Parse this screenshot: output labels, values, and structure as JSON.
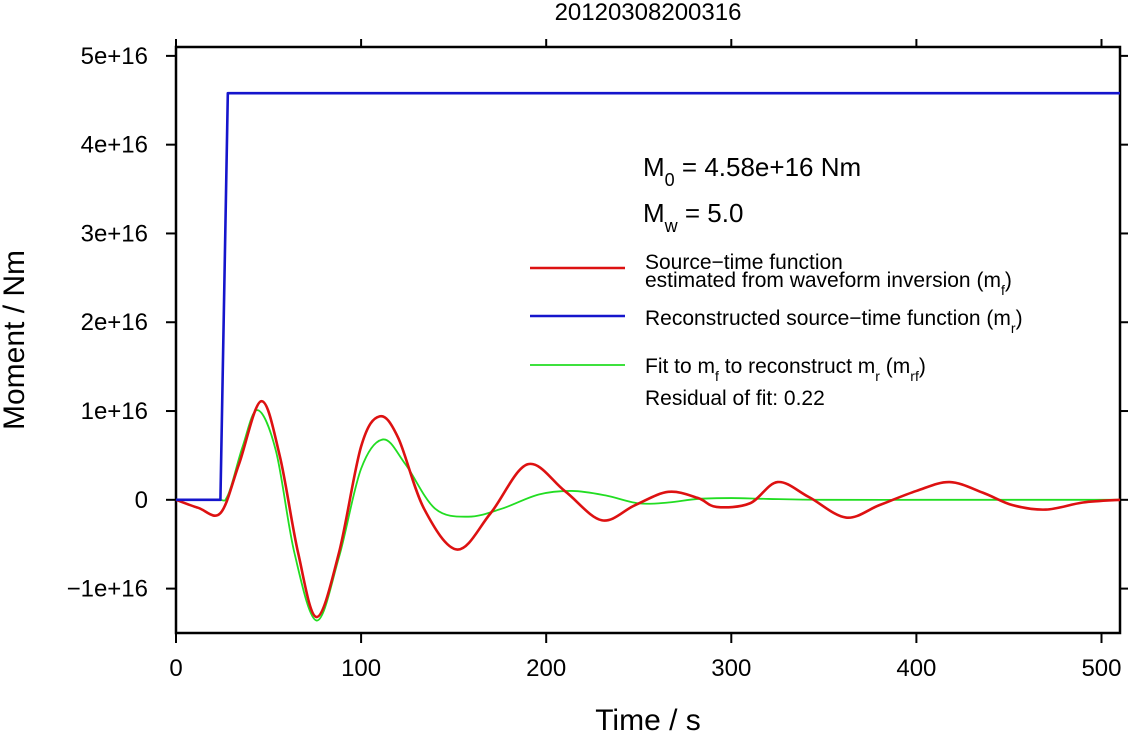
{
  "chart_data": {
    "type": "line",
    "title": "20120308200316",
    "xlabel": "Time / s",
    "ylabel": "Moment / Nm",
    "xlim": [
      0,
      510
    ],
    "ylim": [
      -1.5e+16,
      5.1e+16
    ],
    "xticks": [
      0,
      100,
      200,
      300,
      400,
      500
    ],
    "xtick_labels": [
      "0",
      "100",
      "200",
      "300",
      "400",
      "500"
    ],
    "yticks": [
      -1e+16,
      0,
      1e+16,
      2e+16,
      3e+16,
      4e+16,
      5e+16
    ],
    "ytick_labels": [
      "−1e+16",
      "0",
      "1e+16",
      "2e+16",
      "3e+16",
      "4e+16",
      "5e+16"
    ],
    "grid": false,
    "legend_position": "right",
    "annotations": {
      "m0_prefix": "M",
      "m0_sub": "0",
      "m0_rest": " = 4.58e+16 Nm",
      "mw_prefix": "M",
      "mw_sub": "w",
      "mw_rest": " = 5.0",
      "residual": "Residual of fit: 0.22"
    },
    "series": [
      {
        "key": "mf",
        "name": "Source−time function estimated from waveform inversion (mf)",
        "legend_line1": "Source−time function",
        "legend_line2_pre": "estimated from waveform inversion (m",
        "legend_line2_sub": "f",
        "legend_line2_post": ")",
        "color": "#dd1111",
        "x": [
          0,
          12,
          24,
          34,
          46,
          56,
          66,
          76,
          88,
          100,
          110,
          120,
          134,
          152,
          170,
          190,
          210,
          230,
          248,
          266,
          282,
          292,
          310,
          325,
          342,
          362,
          380,
          400,
          418,
          436,
          452,
          470,
          490,
          510
        ],
        "y": [
          0,
          -900000000000000.0,
          -1500000000000000.0,
          4000000000000000.0,
          1.11e+16,
          5000000000000000.0,
          -6000000000000000.0,
          -1.32e+16,
          -6000000000000000.0,
          6000000000000000.0,
          9400000000000000.0,
          7000000000000000.0,
          -1000000000000000.0,
          -5600000000000000.0,
          -1500000000000000.0,
          4000000000000000.0,
          1000000000000000.0,
          -2300000000000000.0,
          -600000000000000.0,
          900000000000000.0,
          200000000000000.0,
          -800000000000000.0,
          -400000000000000.0,
          2000000000000000.0,
          300000000000000.0,
          -2000000000000000.0,
          -600000000000000.0,
          1000000000000000.0,
          2000000000000000.0,
          800000000000000.0,
          -600000000000000.0,
          -1100000000000000.0,
          -300000000000000.0,
          0
        ]
      },
      {
        "key": "mr",
        "name": "Reconstructed source−time function (mr)",
        "legend_pre": "Reconstructed source−time function (m",
        "legend_sub": "r",
        "legend_post": ")",
        "color": "#1515cc",
        "x": [
          0,
          24,
          28,
          510
        ],
        "y": [
          0,
          0,
          4.58e+16,
          4.58e+16
        ]
      },
      {
        "key": "mrf",
        "name": "Fit to mf to reconstruct mr (mrf)",
        "legend_pre": "Fit to m",
        "legend_sub1": "f",
        "legend_mid": " to reconstruct m",
        "legend_sub2": "r",
        "legend_mid2": " (m",
        "legend_sub3": "rf",
        "legend_post": ")",
        "color": "#22dd22",
        "x": [
          0,
          22,
          28,
          36,
          44,
          54,
          64,
          76,
          88,
          100,
          112,
          124,
          140,
          158,
          176,
          196,
          214,
          232,
          250,
          266,
          282,
          300,
          320,
          350,
          400,
          450,
          510
        ],
        "y": [
          0,
          0,
          500000000000000.0,
          6000000000000000.0,
          1.01e+16,
          5500000000000000.0,
          -6000000000000000.0,
          -1.36e+16,
          -6500000000000000.0,
          3500000000000000.0,
          6800000000000000.0,
          4000000000000000.0,
          -1000000000000000.0,
          -1900000000000000.0,
          -1000000000000000.0,
          600000000000000.0,
          1000000000000000.0,
          500000000000000.0,
          -400000000000000.0,
          -300000000000000.0,
          100000000000000.0,
          200000000000000.0,
          100000000000000.0,
          0,
          0,
          0,
          0
        ]
      }
    ]
  }
}
